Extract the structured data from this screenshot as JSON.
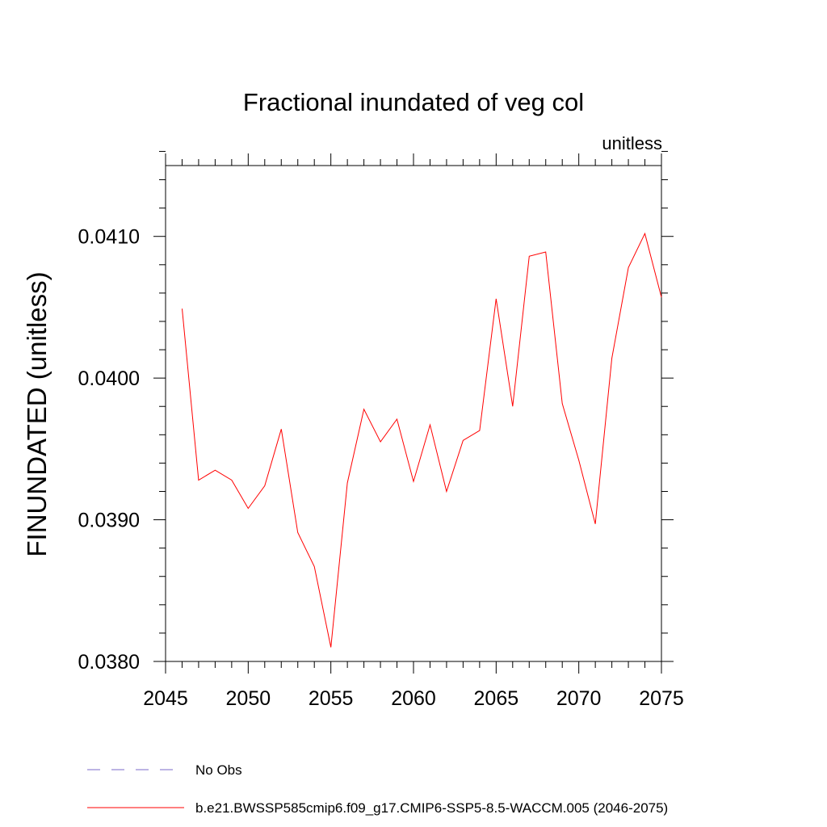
{
  "chart_data": {
    "type": "line",
    "title": "Fractional inundated of veg col",
    "units_label": "unitless",
    "ylabel": "FINUNDATED  (unitless)",
    "xlabel": "",
    "xlim": [
      2045,
      2075
    ],
    "ylim": [
      0.038,
      0.0415
    ],
    "x_ticks": [
      2045,
      2050,
      2055,
      2060,
      2065,
      2070,
      2075
    ],
    "x_tick_labels": [
      "2045",
      "2050",
      "2055",
      "2060",
      "2065",
      "2070",
      "2075"
    ],
    "y_ticks": [
      0.038,
      0.039,
      0.04,
      0.041
    ],
    "y_tick_labels": [
      "0.0380",
      "0.0390",
      "0.0400",
      "0.0410"
    ],
    "grid": false,
    "series": [
      {
        "name": "b.e21.BWSSP585cmip6.f09_g17.CMIP6-SSP5-8.5-WACCM.005 (2046-2075)",
        "color": "#ff0000",
        "style": "solid",
        "x": [
          2046,
          2047,
          2048,
          2049,
          2050,
          2051,
          2052,
          2053,
          2054,
          2055,
          2056,
          2057,
          2058,
          2059,
          2060,
          2061,
          2062,
          2063,
          2064,
          2065,
          2066,
          2067,
          2068,
          2069,
          2070,
          2071,
          2072,
          2073,
          2074,
          2075
        ],
        "values": [
          0.04049,
          0.03928,
          0.03935,
          0.03928,
          0.03908,
          0.03924,
          0.03964,
          0.03891,
          0.03867,
          0.0381,
          0.03926,
          0.03978,
          0.03955,
          0.03971,
          0.03927,
          0.03967,
          0.0392,
          0.03956,
          0.03963,
          0.04056,
          0.0398,
          0.04086,
          0.04089,
          0.03982,
          0.03942,
          0.03897,
          0.04014,
          0.04078,
          0.04102,
          0.04057
        ]
      }
    ],
    "legend": [
      {
        "label": "No Obs",
        "color": "#7b68c8",
        "style": "dashed"
      },
      {
        "label": "b.e21.BWSSP585cmip6.f09_g17.CMIP6-SSP5-8.5-WACCM.005 (2046-2075)",
        "color": "#ff0000",
        "style": "solid"
      }
    ]
  }
}
